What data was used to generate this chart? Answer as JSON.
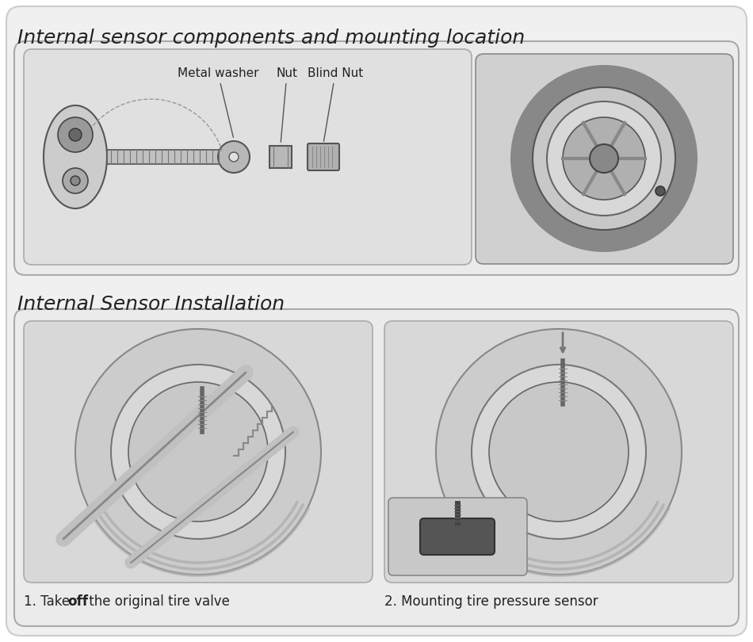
{
  "title1": "Internal sensor components and mounting location",
  "title2": "Internal Sensor Installation",
  "label_metal_washer": "Metal washer",
  "label_nut": "Nut",
  "label_blind_nut": "Blind Nut",
  "caption1_a": "1. Take ",
  "caption1_b": "off",
  "caption1_c": " the original tire valve",
  "caption2": "2. Mounting tire pressure sensor",
  "outer_bg": "#ffffff",
  "title_fontsize": 18,
  "caption_fontsize": 12,
  "label_fontsize": 11
}
